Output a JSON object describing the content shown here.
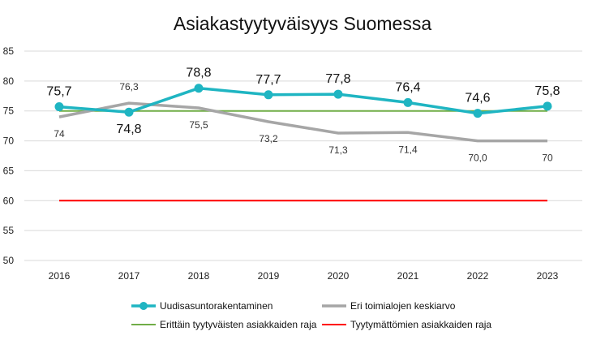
{
  "chart_data": {
    "type": "line",
    "title": "Asiakastyytyväisyys Suomessa",
    "x": [
      "2016",
      "2017",
      "2018",
      "2019",
      "2020",
      "2021",
      "2022",
      "2023"
    ],
    "ylim": [
      50,
      85
    ],
    "y_ticks": [
      "50",
      "55",
      "60",
      "65",
      "70",
      "75",
      "80",
      "85"
    ],
    "grid": true,
    "legend_position": "bottom",
    "series": [
      {
        "name": "Uudisasuntorakentaminen",
        "values": [
          75.7,
          74.8,
          78.8,
          77.7,
          77.8,
          76.4,
          74.6,
          75.8
        ],
        "labels": [
          "75,7",
          "74,8",
          "78,8",
          "77,7",
          "77,8",
          "76,4",
          "74,6",
          "75,8"
        ],
        "color": "#1fb5c2",
        "marker": "circle"
      },
      {
        "name": "Eri toimialojen keskiarvo",
        "values": [
          74,
          76.3,
          75.5,
          73.2,
          71.3,
          71.4,
          70.0,
          70
        ],
        "labels": [
          "74",
          "76,3",
          "75,5",
          "73,2",
          "71,3",
          "71,4",
          "70,0",
          "70"
        ],
        "color": "#a6a6a6"
      },
      {
        "name": "Erittäin tyytyväisten asiakkaiden raja",
        "values": [
          75,
          75,
          75,
          75,
          75,
          75,
          75,
          75
        ],
        "color": "#70ad47"
      },
      {
        "name": "Tyytymättömien asiakkaiden raja",
        "values": [
          60,
          60,
          60,
          60,
          60,
          60,
          60,
          60
        ],
        "color": "#ff0000"
      }
    ]
  }
}
